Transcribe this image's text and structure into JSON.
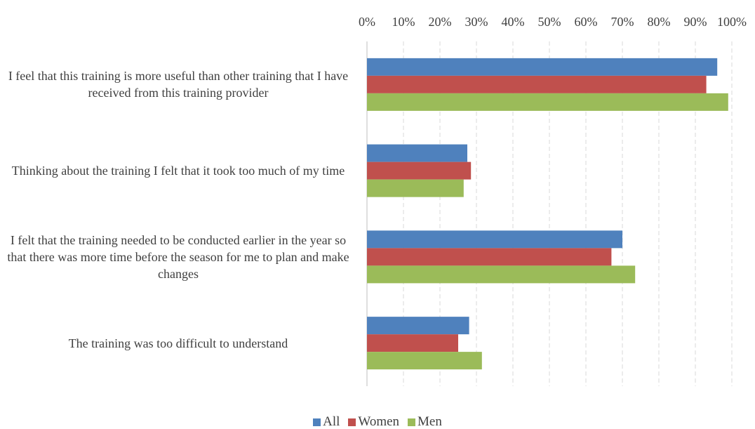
{
  "chart_data": {
    "type": "bar",
    "orientation": "horizontal",
    "categories": [
      "I feel that this training is more useful than other training that I have received from this training provider",
      "Thinking about the training I felt that it took too much of my time",
      "I felt that the training needed to be conducted earlier in the year so that there was more time before the season for me to plan and make changes",
      "The training was too difficult to understand"
    ],
    "series": [
      {
        "name": "All",
        "color": "#4f81bd",
        "values": [
          96,
          27.5,
          70,
          28
        ]
      },
      {
        "name": "Women",
        "color": "#c0504d",
        "values": [
          93,
          28.5,
          67,
          25
        ]
      },
      {
        "name": "Men",
        "color": "#9bbb59",
        "values": [
          99,
          26.5,
          73.5,
          31.5
        ]
      }
    ],
    "xlim": [
      0,
      100
    ],
    "xticks": [
      {
        "value": 0,
        "label": "0%"
      },
      {
        "value": 10,
        "label": "10%"
      },
      {
        "value": 20,
        "label": "20%"
      },
      {
        "value": 30,
        "label": "30%"
      },
      {
        "value": 40,
        "label": "40%"
      },
      {
        "value": 50,
        "label": "50%"
      },
      {
        "value": 60,
        "label": "60%"
      },
      {
        "value": 70,
        "label": "70%"
      },
      {
        "value": 80,
        "label": "80%"
      },
      {
        "value": 90,
        "label": "90%"
      },
      {
        "value": 100,
        "label": "100%"
      }
    ],
    "grid": true,
    "legend": "bottom"
  }
}
